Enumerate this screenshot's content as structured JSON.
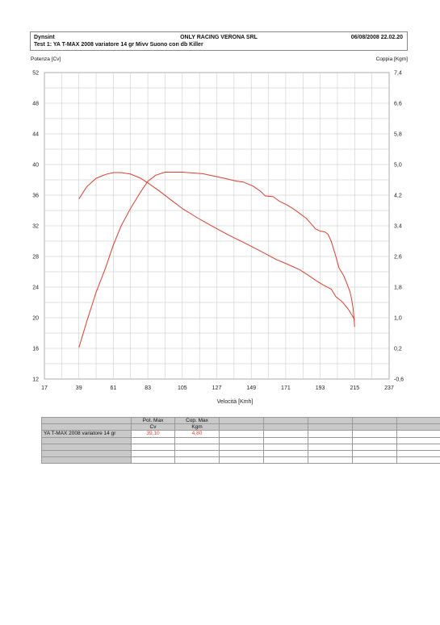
{
  "header": {
    "company": "Dynsint",
    "center_title": "ONLY RACING VERONA SRL",
    "datetime": "06/08/2008  22.02.20",
    "test_line": "Test 1: YA T-MAX 2008 variatore 14 gr Mivv Suono con db Killer"
  },
  "colors": {
    "curve": "#e53a2a",
    "grid": "#c4c4c4",
    "table_header": "#c9c9c9"
  },
  "chart_data": {
    "type": "line",
    "ylabel_left": "Potenza [Cv]",
    "ylabel_right": "Coppia [Kgm]",
    "xlabel": "Velocità [Kmh]",
    "xlim": [
      17,
      237
    ],
    "ylim_left": [
      12,
      52
    ],
    "ylim_right": [
      -0.6,
      7.4
    ],
    "x_ticks": [
      "17",
      "39",
      "61",
      "83",
      "105",
      "127",
      "149",
      "171",
      "193",
      "215",
      "237"
    ],
    "y_ticks_left": [
      "12",
      "16",
      "20",
      "24",
      "28",
      "32",
      "36",
      "40",
      "44",
      "48",
      "52"
    ],
    "y_ticks_right": [
      "-0,6",
      "0,2",
      "1,0",
      "1,8",
      "2,6",
      "3,4",
      "4,2",
      "5,0",
      "5,8",
      "6,6",
      "7,4"
    ],
    "grid": true,
    "series": [
      {
        "axis": "left",
        "values": [
          [
            39,
            16.1
          ],
          [
            44,
            19.5
          ],
          [
            50,
            23.3
          ],
          [
            56,
            26.5
          ],
          [
            61,
            29.5
          ],
          [
            66,
            32.0
          ],
          [
            72,
            34.3
          ],
          [
            78,
            36.3
          ],
          [
            83,
            37.8
          ],
          [
            88,
            38.6
          ],
          [
            94,
            39.0
          ],
          [
            100,
            39.0
          ],
          [
            105,
            39.0
          ],
          [
            112,
            38.9
          ],
          [
            118,
            38.8
          ],
          [
            125,
            38.5
          ],
          [
            132,
            38.2
          ],
          [
            138,
            37.9
          ],
          [
            144,
            37.7
          ],
          [
            150,
            37.2
          ],
          [
            155,
            36.5
          ],
          [
            158,
            35.9
          ],
          [
            163,
            35.8
          ],
          [
            167,
            35.2
          ],
          [
            172,
            34.7
          ],
          [
            176,
            34.2
          ],
          [
            180,
            33.6
          ],
          [
            184,
            33.0
          ],
          [
            187,
            32.3
          ],
          [
            190,
            31.6
          ],
          [
            193,
            31.3
          ],
          [
            196,
            31.2
          ],
          [
            198,
            30.9
          ],
          [
            200,
            30.0
          ],
          [
            203,
            28.0
          ],
          [
            205,
            26.5
          ],
          [
            208,
            25.5
          ],
          [
            210,
            24.5
          ],
          [
            212,
            23.4
          ],
          [
            213,
            22.5
          ],
          [
            214,
            21.2
          ],
          [
            215,
            18.8
          ]
        ]
      },
      {
        "axis": "right",
        "values": [
          [
            39,
            4.1
          ],
          [
            44,
            4.42
          ],
          [
            50,
            4.64
          ],
          [
            56,
            4.74
          ],
          [
            61,
            4.79
          ],
          [
            66,
            4.79
          ],
          [
            72,
            4.75
          ],
          [
            78,
            4.65
          ],
          [
            83,
            4.52
          ],
          [
            90,
            4.32
          ],
          [
            97,
            4.1
          ],
          [
            105,
            3.85
          ],
          [
            115,
            3.6
          ],
          [
            125,
            3.37
          ],
          [
            135,
            3.15
          ],
          [
            145,
            2.95
          ],
          [
            155,
            2.74
          ],
          [
            165,
            2.52
          ],
          [
            172,
            2.4
          ],
          [
            180,
            2.25
          ],
          [
            185,
            2.12
          ],
          [
            190,
            1.98
          ],
          [
            195,
            1.85
          ],
          [
            200,
            1.75
          ],
          [
            203,
            1.55
          ],
          [
            207,
            1.42
          ],
          [
            211,
            1.22
          ],
          [
            215,
            0.95
          ]
        ]
      }
    ]
  },
  "table": {
    "headers": [
      "",
      "Pot. Max",
      "Cop. Max",
      "",
      "",
      "",
      "",
      ""
    ],
    "units": [
      "",
      "Cv",
      "Kgm",
      "",
      "",
      "",
      "",
      ""
    ],
    "rows": [
      [
        "YA T-MAX 2008 variatore 14 gr",
        "39,10",
        "4,80",
        "",
        "",
        "",
        "",
        ""
      ],
      [
        "",
        "",
        "",
        "",
        "",
        "",
        "",
        ""
      ],
      [
        "",
        "",
        "",
        "",
        "",
        "",
        "",
        ""
      ],
      [
        "",
        "",
        "",
        "",
        "",
        "",
        "",
        ""
      ],
      [
        "",
        "",
        "",
        "",
        "",
        "",
        "",
        ""
      ]
    ]
  }
}
